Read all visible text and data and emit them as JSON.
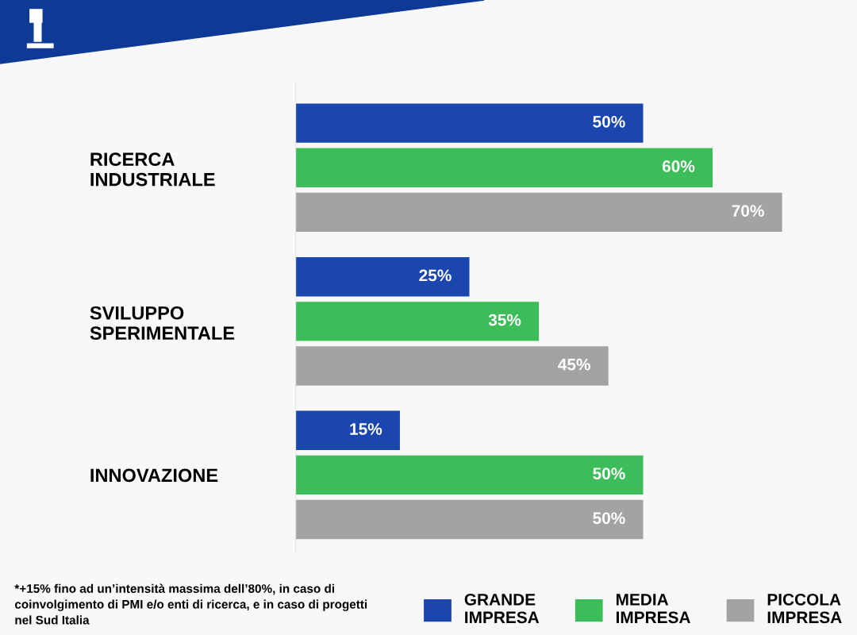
{
  "chart_data": {
    "type": "bar",
    "orientation": "horizontal",
    "categories": [
      "RICERCA INDUSTRIALE",
      "SVILUPPO SPERIMENTALE",
      "INNOVAZIONE"
    ],
    "series": [
      {
        "name": "GRANDE IMPRESA",
        "color": "#1b46ae",
        "values": [
          50,
          25,
          15
        ],
        "value_labels": [
          "50%",
          "25%",
          "15%"
        ]
      },
      {
        "name": "MEDIA IMPRESA",
        "color": "#3dbd5a",
        "values": [
          60,
          35,
          50
        ],
        "value_labels": [
          "60%",
          "35%",
          "50%"
        ]
      },
      {
        "name": "PICCOLA IMPRESA",
        "color": "#a3a3a3",
        "values": [
          70,
          45,
          50
        ],
        "value_labels": [
          "70%",
          "45%",
          "50%"
        ]
      }
    ],
    "tick_labels": "y",
    "legend": "bottom right",
    "annotations": [
      "*+15% fino ad un’intensità massima dell’80%, in caso di coinvolgimento di PMI e/o enti di ricerca, e in caso di progetti nel Sud Italia"
    ]
  }
}
